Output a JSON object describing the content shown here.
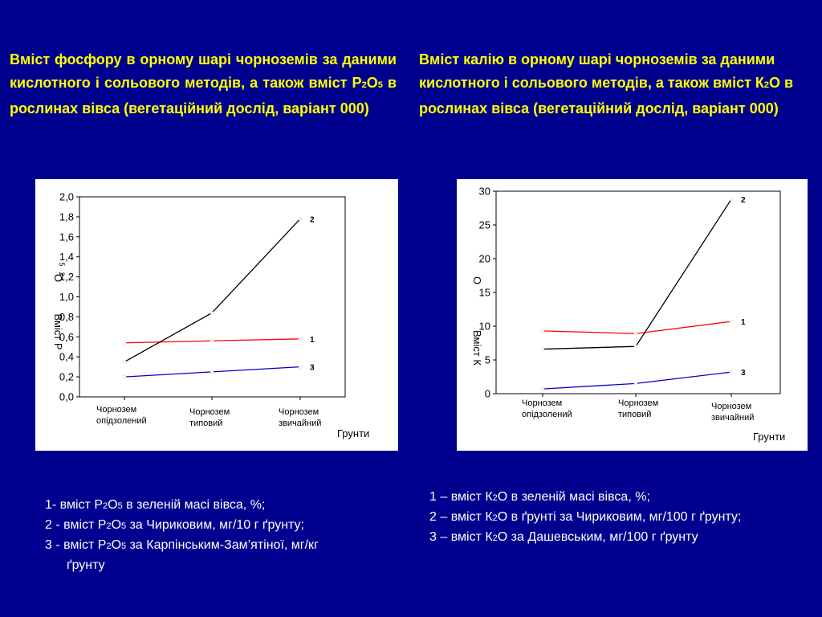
{
  "left": {
    "title": {
      "a": "Вміст фосфору в орному шарі чорноземів за даними кислотного і сольового методів, а також вміст Р",
      "s1": "2",
      "b": "О",
      "s2": "5",
      "c": " в рослинах вівса (вегетаційний дослід, варіант 000)"
    },
    "legend": [
      {
        "a": "1- вміст Р",
        "s1": "2",
        "b": "О",
        "s2": "5",
        "c": " в зеленій масі вівса, %;",
        "d": ""
      },
      {
        "a": "2 - вміст Р",
        "s1": "2",
        "b": "О",
        "s2": "5",
        "c": " за Чириковим, мг/10 г ґрунту;",
        "d": ""
      },
      {
        "a": "3 - вміст Р",
        "s1": "2",
        "b": "О",
        "s2": "5",
        "c": " за Карпінським-Зам’ятіної, мг/кг",
        "d": "ґрунту"
      }
    ]
  },
  "right": {
    "title": {
      "a": "Вміст калію в орному шарі чорноземів за даними кислотного і сольового методів, а також вміст К",
      "s1": "2",
      "b": "О в рослинах вівса (вегетаційний дослід, варіант 000)"
    },
    "legend": [
      {
        "a": "1 – вміст К",
        "s1": "2",
        "b": "О в зеленій масі вівса, %;"
      },
      {
        "a": "2 – вміст К",
        "s1": "2",
        "b": "О в ґрунті за Чириковим, мг/100 г ґрунту;"
      },
      {
        "a": "3 – вміст К",
        "s1": "2",
        "b": "О за Дашевським, мг/100 г ґрунту"
      }
    ]
  },
  "chart_data": [
    {
      "type": "line",
      "categories": [
        "Чорнозем опідзолений",
        "Чорнозем типовий",
        "Чорнозем звичайний"
      ],
      "category_lines": [
        [
          "Чорнозем",
          "опідзолений"
        ],
        [
          "Чорнозем",
          "типовий"
        ],
        [
          "Чорнозем",
          "звичайний"
        ]
      ],
      "xlabel": "Грунти",
      "ylabel": "Вміст Р",
      "ylabel_extra": [
        "O",
        "5",
        "2"
      ],
      "ylim": [
        0,
        2
      ],
      "yticks": [
        "0,0",
        "0,2",
        "0,4",
        "0,6",
        "0,8",
        "1,0",
        "1,2",
        "1,4",
        "1,6",
        "1,8",
        "2,0"
      ],
      "series": [
        {
          "name": "1",
          "color": "#ff0000",
          "values": [
            0.54,
            0.56,
            0.58
          ]
        },
        {
          "name": "2",
          "color": "#000000",
          "values": [
            0.35,
            0.84,
            1.78
          ]
        },
        {
          "name": "3",
          "color": "#0000cc",
          "values": [
            0.2,
            0.25,
            0.3
          ]
        }
      ]
    },
    {
      "type": "line",
      "categories": [
        "Чорнозем опідзолений",
        "Чорнозем типовий",
        "Чорнозем звичайний"
      ],
      "category_lines": [
        [
          "Чорнозем",
          "опідзолений"
        ],
        [
          "Чорнозем",
          "типовий"
        ],
        [
          "Чорнозем",
          "звичайний"
        ]
      ],
      "xlabel": "Грунти",
      "ylabel": "Вміст К",
      "ylabel_extra": [
        "O"
      ],
      "ylim": [
        0,
        30
      ],
      "yticks": [
        "0",
        "5",
        "10",
        "15",
        "20",
        "25",
        "30"
      ],
      "series": [
        {
          "name": "1",
          "color": "#ff0000",
          "values": [
            9.3,
            8.9,
            10.7
          ]
        },
        {
          "name": "2",
          "color": "#000000",
          "values": [
            6.6,
            7.0,
            28.8
          ]
        },
        {
          "name": "3",
          "color": "#0000cc",
          "values": [
            0.7,
            1.5,
            3.2
          ]
        }
      ]
    }
  ]
}
